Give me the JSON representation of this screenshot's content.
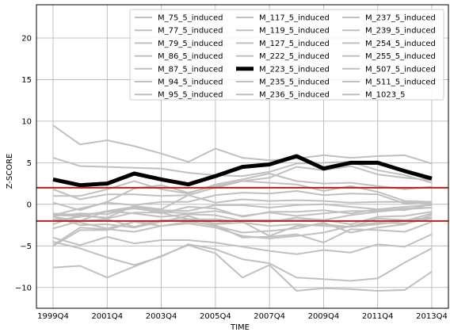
{
  "chart_data": {
    "type": "line",
    "title": "",
    "xlabel": "TIME",
    "ylabel": "Z-SCORE",
    "x": [
      "1999Q4",
      "2000Q4",
      "2001Q4",
      "2002Q4",
      "2003Q4",
      "2004Q4",
      "2005Q4",
      "2006Q4",
      "2007Q4",
      "2008Q4",
      "2009Q4",
      "2010Q4",
      "2011Q4",
      "2012Q4",
      "2013Q4"
    ],
    "xticks": [
      "1999Q4",
      "2001Q4",
      "2003Q4",
      "2005Q4",
      "2007Q4",
      "2009Q4",
      "2011Q4",
      "2013Q4"
    ],
    "ylim": [
      -12.5,
      24
    ],
    "yticks": [
      "20",
      "15",
      "10",
      "5",
      "0",
      "−5",
      "−10"
    ],
    "ytick_values": [
      20,
      15,
      10,
      5,
      0,
      -5,
      -10
    ],
    "grid": true,
    "legend_position": "top-right",
    "legend_columns": 3,
    "thresholds": [
      2,
      -2
    ],
    "threshold_color": "#b22222",
    "background_color": "#c0c0c0",
    "highlight_color": "#000000",
    "highlight_series": "M_223_5_induced",
    "series": [
      {
        "name": "M_75_5_induced",
        "values": [
          9.5,
          7.2,
          7.7,
          7.0,
          6.1,
          5.1,
          6.7,
          5.6,
          5.3,
          5.5,
          5.9,
          5.6,
          5.8,
          5.9,
          4.9
        ]
      },
      {
        "name": "M_77_5_induced",
        "values": [
          5.6,
          4.6,
          4.5,
          4.4,
          4.3,
          3.8,
          3.5,
          3.4,
          3.9,
          4.9,
          5.0,
          5.1,
          4.1,
          3.5,
          2.6
        ]
      },
      {
        "name": "M_79_5_induced",
        "values": [
          1.8,
          0.6,
          1.2,
          1.2,
          1.0,
          1.1,
          2.0,
          2.8,
          3.2,
          4.5,
          4.1,
          4.6,
          3.6,
          3.2,
          2.9
        ]
      },
      {
        "name": "M_86_5_induced",
        "values": [
          1.0,
          1.0,
          1.8,
          2.8,
          1.8,
          1.3,
          2.4,
          3.0,
          3.7,
          2.8,
          2.5,
          2.6,
          2.2,
          1.8,
          2.1
        ]
      },
      {
        "name": "M_87_5_induced",
        "values": [
          0.2,
          -0.7,
          0.3,
          1.9,
          2.3,
          1.4,
          2.2,
          2.8,
          2.6,
          2.4,
          1.6,
          2.2,
          1.5,
          0.4,
          0.3
        ]
      },
      {
        "name": "M_94_5_induced",
        "values": [
          -1.3,
          -0.5,
          0.2,
          -0.1,
          0.3,
          0.3,
          1.1,
          1.4,
          1.3,
          1.6,
          1.1,
          1.3,
          1.2,
          0.1,
          0.3
        ]
      },
      {
        "name": "M_95_5_induced",
        "values": [
          -1.3,
          -1.4,
          -1.6,
          -0.2,
          -0.6,
          1.1,
          0.2,
          0.6,
          0.4,
          0.5,
          0.4,
          0.2,
          0.3,
          0.3,
          0.1
        ]
      },
      {
        "name": "M_117_5_induced",
        "values": [
          -1.5,
          -2.0,
          -0.8,
          -0.3,
          -0.7,
          -0.8,
          -0.1,
          -0.1,
          -0.4,
          -0.1,
          0.0,
          -0.3,
          -0.6,
          -0.3,
          -0.1
        ]
      },
      {
        "name": "M_119_5_induced",
        "values": [
          -1.4,
          -1.1,
          -1.2,
          -0.3,
          -1.1,
          -0.3,
          -0.5,
          -1.5,
          -0.9,
          -0.9,
          -0.7,
          -1.1,
          -0.6,
          -0.7,
          0.0
        ]
      },
      {
        "name": "M_127_5_induced",
        "values": [
          -2.4,
          -1.3,
          -1.7,
          -1.0,
          -1.0,
          -1.8,
          -2.3,
          -1.9,
          -1.9,
          -1.9,
          -1.9,
          -1.3,
          -0.9,
          -0.6,
          -0.4
        ]
      },
      {
        "name": "M_222_5_induced",
        "values": [
          -2.0,
          -1.5,
          -0.8,
          -1.1,
          -1.5,
          -1.2,
          -1.3,
          -2.0,
          -2.1,
          -1.6,
          -1.9,
          -2.4,
          -1.5,
          -1.4,
          -0.9
        ]
      },
      {
        "name": "M_223_5_induced",
        "values": [
          3.0,
          2.3,
          2.5,
          3.7,
          3.0,
          2.4,
          3.4,
          4.5,
          4.8,
          5.8,
          4.3,
          5.0,
          5.0,
          4.0,
          3.1
        ]
      },
      {
        "name": "M_235_5_induced",
        "values": [
          -2.9,
          -2.0,
          -1.8,
          -2.7,
          -1.9,
          -2.0,
          -2.6,
          -3.4,
          -3.2,
          -2.9,
          -2.2,
          -3.4,
          -2.8,
          -2.4,
          -1.3
        ]
      },
      {
        "name": "M_236_5_induced",
        "values": [
          -1.5,
          -2.5,
          -2.4,
          -2.8,
          -2.1,
          -1.8,
          -1.8,
          -2.1,
          -3.8,
          -2.6,
          -2.4,
          -2.7,
          -1.7,
          -1.9,
          -1.6
        ]
      },
      {
        "name": "M_237_5_induced",
        "values": [
          -4.0,
          -4.9,
          -3.9,
          -4.7,
          -4.3,
          -4.3,
          -4.6,
          -5.1,
          -5.6,
          -6.0,
          -5.5,
          -5.8,
          -4.8,
          -5.1,
          -3.6
        ]
      },
      {
        "name": "M_239_5_induced",
        "values": [
          -4.5,
          -5.3,
          -6.4,
          -7.3,
          -6.3,
          -4.8,
          -5.4,
          -6.6,
          -7.1,
          -8.8,
          -9.0,
          -9.2,
          -8.9,
          -7.0,
          -5.3
        ]
      },
      {
        "name": "M_254_5_induced",
        "values": [
          -4.9,
          -2.8,
          -3.0,
          -3.3,
          -2.6,
          -2.3,
          -2.8,
          -3.8,
          -4.1,
          -3.8,
          -3.4,
          -2.6,
          -2.2,
          -2.3,
          -1.7
        ]
      },
      {
        "name": "M_255_5_induced",
        "values": [
          -5.0,
          -3.1,
          -3.1,
          -2.1,
          -2.6,
          -2.1,
          -2.5,
          -4.0,
          -3.9,
          -3.6,
          -4.6,
          -3.0,
          -3.1,
          -3.3,
          -2.1
        ]
      },
      {
        "name": "M_507_5_induced",
        "values": [
          -1.8,
          -2.2,
          -2.9,
          -2.1,
          -2.1,
          -1.4,
          -2.4,
          -2.2,
          -2.6,
          -2.4,
          -2.6,
          -2.7,
          -2.4,
          -2.0,
          -1.1
        ]
      },
      {
        "name": "M_511_5_induced",
        "values": [
          -7.6,
          -7.4,
          -8.8,
          -7.5,
          -6.2,
          -4.9,
          -5.9,
          -8.8,
          -7.3,
          -10.4,
          -10.1,
          -10.2,
          -10.4,
          -10.3,
          -8.1
        ]
      },
      {
        "name": "M_1023_5",
        "values": [
          -1.1,
          -1.3,
          -0.9,
          -0.5,
          -0.9,
          -1.1,
          -0.8,
          -1.4,
          -1.0,
          -1.4,
          -1.1,
          -0.8,
          -0.8,
          -0.5,
          -0.4
        ]
      }
    ]
  }
}
